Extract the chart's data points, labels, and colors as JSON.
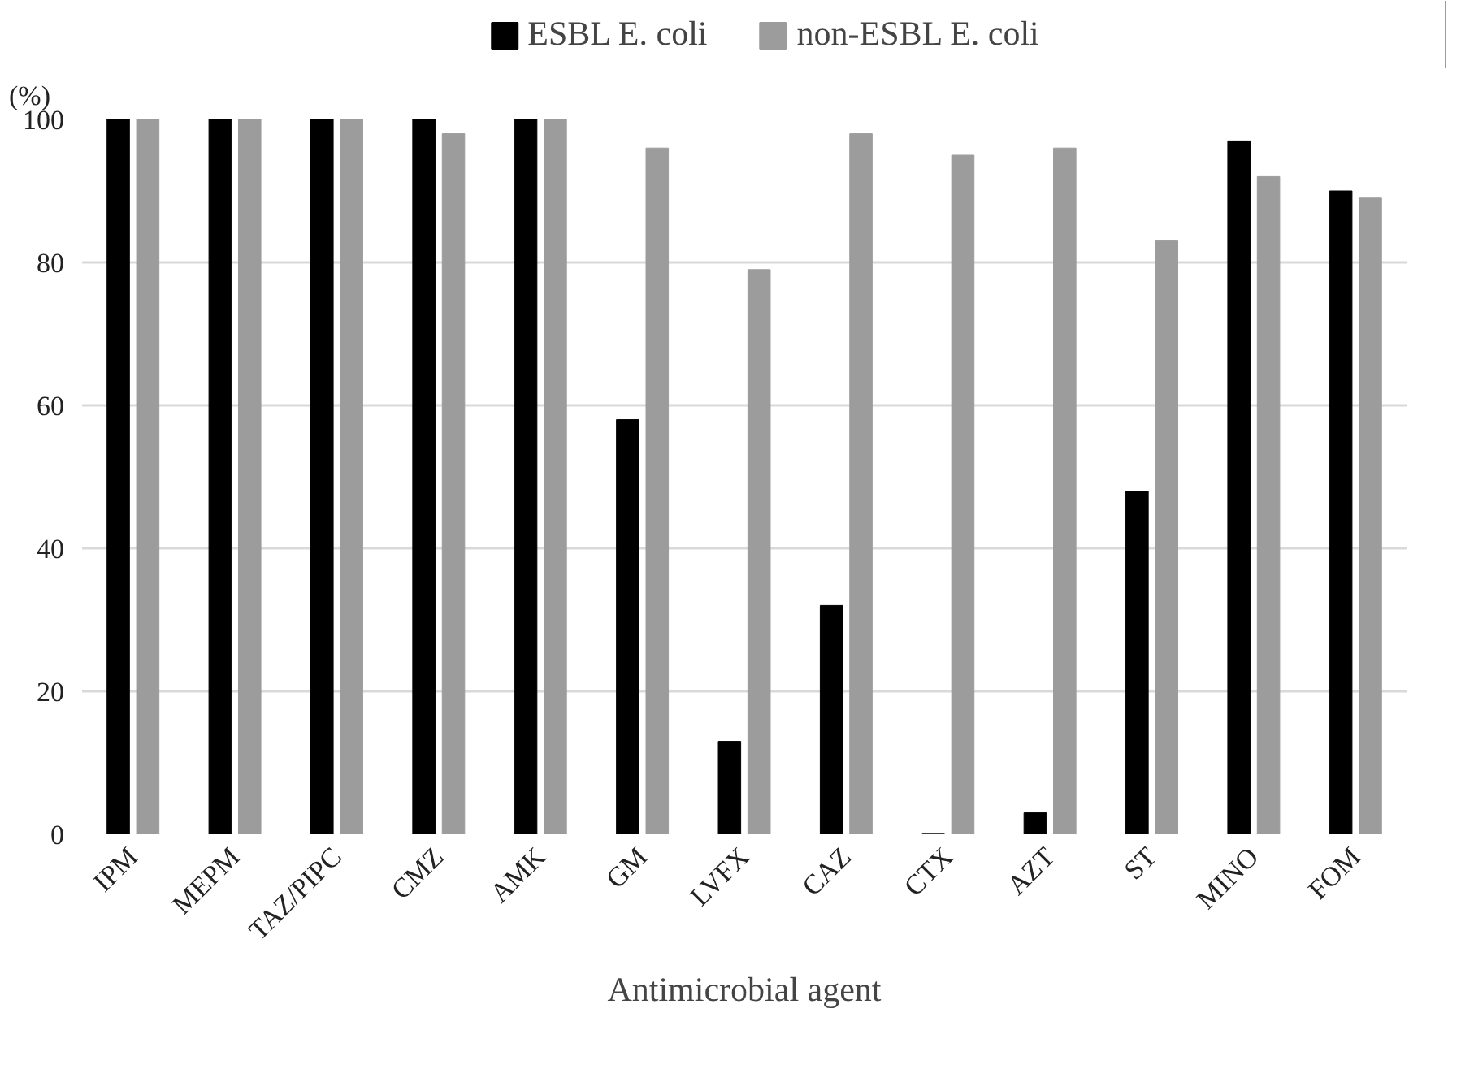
{
  "chart_data": {
    "type": "bar",
    "xlabel": "Antimicrobial agent",
    "ylabel": "(%)",
    "categories": [
      "IPM",
      "MEPM",
      "TAZ/PIPC",
      "CMZ",
      "AMK",
      "GM",
      "LVFX",
      "CAZ",
      "CTX",
      "AZT",
      "ST",
      "MINO",
      "FOM"
    ],
    "series": [
      {
        "name": "ESBL E. coli",
        "color": "#000000",
        "values": [
          100,
          100,
          100,
          100,
          100,
          58,
          13,
          32,
          0,
          3,
          48,
          97,
          90
        ]
      },
      {
        "name": "non-ESBL E. coli",
        "color": "#9c9c9c",
        "values": [
          100,
          100,
          100,
          98,
          100,
          96,
          79,
          98,
          95,
          96,
          83,
          92,
          89
        ]
      }
    ],
    "ylim": [
      0,
      100
    ],
    "yticks": [
      0,
      20,
      40,
      60,
      80,
      100
    ],
    "grid": "y",
    "legend": "top"
  }
}
